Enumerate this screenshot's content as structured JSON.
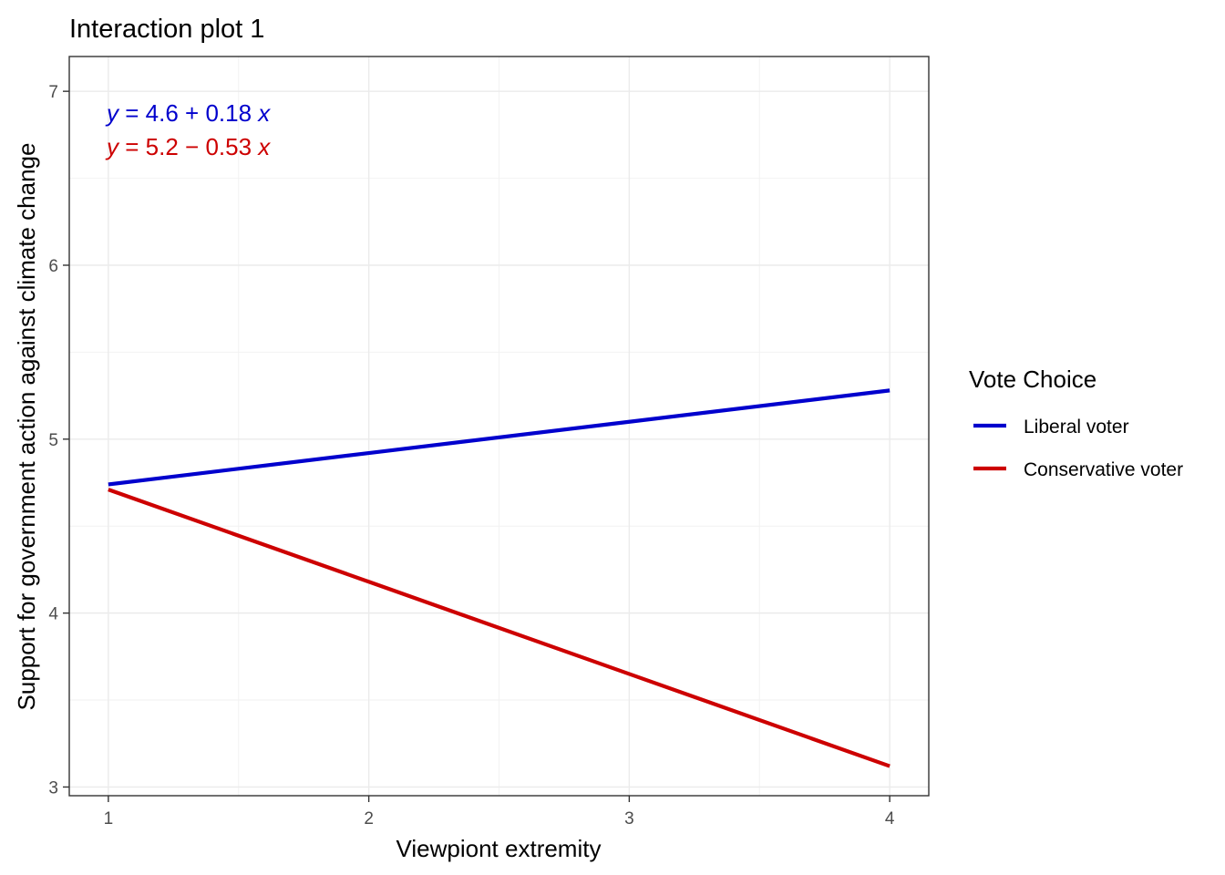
{
  "chart_data": {
    "type": "line",
    "title": "Interaction plot 1",
    "xlabel": "Viewpiont extremity",
    "ylabel": "Support for government action against climate change",
    "xlim": [
      0.85,
      4.15
    ],
    "ylim": [
      2.95,
      7.2
    ],
    "x_ticks": [
      1,
      2,
      3,
      4
    ],
    "y_ticks": [
      3,
      4,
      5,
      6,
      7
    ],
    "grid": true,
    "legend": {
      "title": "Vote Choice",
      "position": "right"
    },
    "series": [
      {
        "name": "Liberal voter",
        "color": "#0000cd",
        "x": [
          1,
          2,
          3,
          4
        ],
        "y": [
          4.74,
          4.92,
          5.1,
          5.28
        ],
        "equation": {
          "var_y": "y",
          "eq": "=",
          "intercept": "4.6",
          "op": "+",
          "slope": "0.18",
          "var_x": "x"
        }
      },
      {
        "name": "Conservative voter",
        "color": "#cd0000",
        "x": [
          1,
          2,
          3,
          4
        ],
        "y": [
          4.71,
          4.18,
          3.65,
          3.12
        ],
        "equation": {
          "var_y": "y",
          "eq": "=",
          "intercept": "5.2",
          "op": "−",
          "slope": "0.53",
          "var_x": "x"
        }
      }
    ]
  }
}
